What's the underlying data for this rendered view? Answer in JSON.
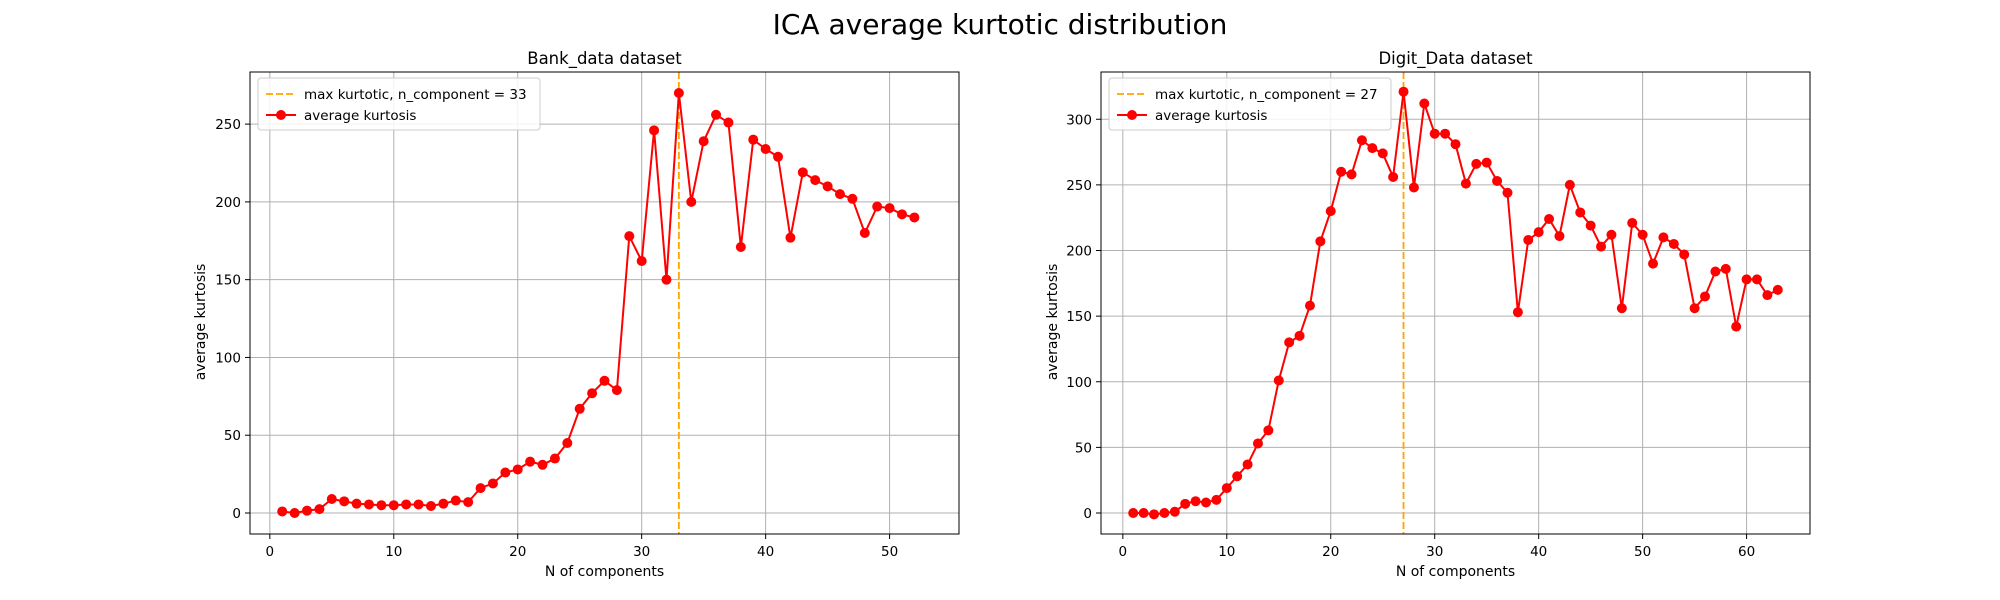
{
  "suptitle": "ICA average kurtotic distribution",
  "chart_data": [
    {
      "type": "line",
      "title": "Bank_data dataset",
      "xlabel": "N of components",
      "ylabel": "average kurtosis",
      "xlim": [
        -1.6,
        55.6
      ],
      "ylim": [
        -13.5,
        283.5
      ],
      "xticks": [
        0,
        10,
        20,
        30,
        40,
        50
      ],
      "yticks": [
        0,
        50,
        100,
        150,
        200,
        250
      ],
      "grid": true,
      "legend_position": "upper-left",
      "vline": {
        "x": 33,
        "label": "max kurtotic, n_component = 33",
        "color": "#ffa500"
      },
      "series": [
        {
          "name": "average kurtosis",
          "color": "#ff0000",
          "x": [
            1,
            2,
            3,
            4,
            5,
            6,
            7,
            8,
            9,
            10,
            11,
            12,
            13,
            14,
            15,
            16,
            17,
            18,
            19,
            20,
            21,
            22,
            23,
            24,
            25,
            26,
            27,
            28,
            29,
            30,
            31,
            32,
            33,
            34,
            35,
            36,
            37,
            38,
            39,
            40,
            41,
            42,
            43,
            44,
            45,
            46,
            47,
            48,
            49,
            50,
            51,
            52
          ],
          "y": [
            1,
            0,
            1.5,
            2.5,
            9,
            7.5,
            6,
            5.5,
            5,
            5,
            5.5,
            5.5,
            4.5,
            6,
            8,
            7,
            16,
            19,
            26,
            28,
            33,
            31,
            35,
            45,
            67,
            77,
            85,
            79,
            178,
            162,
            246,
            150,
            270,
            200,
            239,
            256,
            251,
            171,
            240,
            234,
            229,
            177,
            219,
            214,
            210,
            205,
            202,
            180,
            197,
            196,
            192,
            190
          ]
        }
      ]
    },
    {
      "type": "line",
      "title": "Digit_Data dataset",
      "xlabel": "N of components",
      "ylabel": "average kurtosis",
      "xlim": [
        -2.1,
        66.1
      ],
      "ylim": [
        -16,
        336
      ],
      "xticks": [
        0,
        10,
        20,
        30,
        40,
        50,
        60
      ],
      "yticks": [
        0,
        50,
        100,
        150,
        200,
        250,
        300
      ],
      "grid": true,
      "legend_position": "upper-left",
      "vline": {
        "x": 27,
        "label": "max kurtotic, n_component = 27",
        "color": "#ffa500"
      },
      "series": [
        {
          "name": "average kurtosis",
          "color": "#ff0000",
          "x": [
            1,
            2,
            3,
            4,
            5,
            6,
            7,
            8,
            9,
            10,
            11,
            12,
            13,
            14,
            15,
            16,
            17,
            18,
            19,
            20,
            21,
            22,
            23,
            24,
            25,
            26,
            27,
            28,
            29,
            30,
            31,
            32,
            33,
            34,
            35,
            36,
            37,
            38,
            39,
            40,
            41,
            42,
            43,
            44,
            45,
            46,
            47,
            48,
            49,
            50,
            51,
            52,
            53,
            54,
            55,
            56,
            57,
            58,
            59,
            60,
            61,
            62,
            63
          ],
          "y": [
            0,
            0,
            -1,
            0,
            1,
            7,
            9,
            8,
            10,
            19,
            28,
            37,
            53,
            63,
            101,
            130,
            135,
            158,
            207,
            230,
            260,
            258,
            284,
            278,
            274,
            256,
            321,
            248,
            312,
            289,
            289,
            281,
            251,
            266,
            267,
            253,
            244,
            153,
            208,
            214,
            224,
            211,
            250,
            229,
            219,
            203,
            212,
            156,
            221,
            212,
            190,
            210,
            205,
            197,
            156,
            165,
            184,
            186,
            142,
            178,
            178,
            166,
            170
          ]
        }
      ]
    }
  ]
}
